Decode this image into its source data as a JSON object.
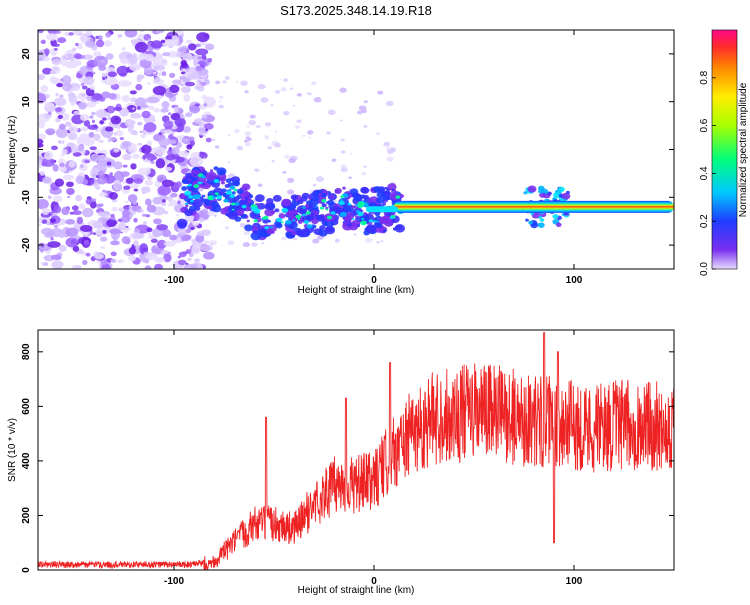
{
  "title": "S173.2025.348.14.19.R18",
  "chart_data": [
    {
      "type": "heatmap",
      "xlabel": "Height of straight line (km)",
      "ylabel": "Frequency (Hz)",
      "xlim": [
        -168,
        150
      ],
      "ylim": [
        -25,
        25
      ],
      "x_ticks": [
        -100,
        0,
        100
      ],
      "y_ticks": [
        -20,
        -10,
        0,
        10,
        20
      ],
      "colorbar": {
        "label": "Normalized spectral amplitude",
        "range": [
          0,
          1
        ],
        "ticks": [
          "0.0",
          "0.2",
          "0.4",
          "0.6",
          "0.8"
        ]
      },
      "signal_track": [
        {
          "x": -95,
          "y": -10
        },
        {
          "x": -85,
          "y": -7
        },
        {
          "x": -75,
          "y": -9
        },
        {
          "x": -65,
          "y": -12
        },
        {
          "x": -55,
          "y": -15
        },
        {
          "x": -45,
          "y": -14
        },
        {
          "x": -35,
          "y": -14
        },
        {
          "x": -25,
          "y": -13
        },
        {
          "x": -15,
          "y": -12
        },
        {
          "x": -5,
          "y": -13
        },
        {
          "x": 5,
          "y": -12.5
        },
        {
          "x": 15,
          "y": -12
        },
        {
          "x": 150,
          "y": -12
        }
      ]
    },
    {
      "type": "line",
      "xlabel": "Height of straight line (km)",
      "ylabel": "SNR (10 * v/v)",
      "xlim": [
        -168,
        150
      ],
      "ylim": [
        0,
        880
      ],
      "x_ticks": [
        -100,
        0,
        100
      ],
      "y_ticks": [
        0,
        200,
        400,
        600,
        800
      ],
      "color": "#ee2222",
      "baseline": [
        [
          -168,
          20
        ],
        [
          -90,
          20
        ],
        [
          -80,
          30
        ],
        [
          -70,
          100
        ],
        [
          -60,
          170
        ],
        [
          -50,
          170
        ],
        [
          -40,
          150
        ],
        [
          -30,
          240
        ],
        [
          -20,
          310
        ],
        [
          -10,
          310
        ],
        [
          0,
          330
        ],
        [
          10,
          430
        ],
        [
          20,
          510
        ],
        [
          30,
          560
        ],
        [
          40,
          570
        ],
        [
          50,
          580
        ],
        [
          60,
          580
        ],
        [
          70,
          560
        ],
        [
          80,
          550
        ],
        [
          90,
          540
        ],
        [
          100,
          530
        ],
        [
          110,
          520
        ],
        [
          120,
          530
        ],
        [
          130,
          530
        ],
        [
          150,
          530
        ]
      ],
      "spikes": [
        {
          "x": -54,
          "y": 560
        },
        {
          "x": -14,
          "y": 630
        },
        {
          "x": 8,
          "y": 760
        },
        {
          "x": 85,
          "y": 870
        },
        {
          "x": 90,
          "y": 100
        },
        {
          "x": 92,
          "y": 800
        }
      ]
    }
  ]
}
